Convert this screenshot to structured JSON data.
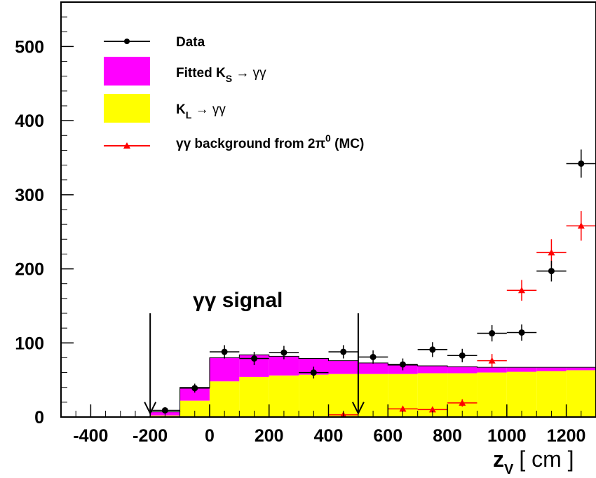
{
  "chart_data": {
    "type": "bar",
    "xlabel": "z_V [ cm ]",
    "xlabel_parts": {
      "main": "z",
      "sub": "V",
      "units": "[ cm ]"
    },
    "xlim": [
      -500,
      1300
    ],
    "ylim": [
      0,
      560
    ],
    "x_ticks": [
      -400,
      -200,
      0,
      200,
      400,
      600,
      800,
      1000,
      1200
    ],
    "y_ticks": [
      0,
      100,
      200,
      300,
      400,
      500
    ],
    "bin_edges": [
      -500,
      -400,
      -300,
      -200,
      -100,
      0,
      100,
      200,
      300,
      400,
      500,
      600,
      700,
      800,
      900,
      1000,
      1100,
      1200,
      1300
    ],
    "colors": {
      "ks": "#ff00ff",
      "kl": "#ffff00",
      "data": "#000000",
      "background": "#ff0000"
    },
    "series": [
      {
        "name": "K_L → γγ",
        "kind": "stacked-histogram",
        "color": "#ffff00",
        "values": [
          0,
          0,
          0,
          2,
          22,
          48,
          54,
          56,
          57,
          58,
          58,
          58,
          59,
          59,
          60,
          61,
          62,
          63
        ]
      },
      {
        "name": "Fitted K_S → γγ",
        "kind": "stacked-histogram",
        "color": "#ff00ff",
        "values": [
          0,
          0,
          0,
          5,
          18,
          32,
          30,
          26,
          22,
          18,
          15,
          12,
          10,
          9,
          7,
          6,
          5,
          4
        ]
      },
      {
        "name": "Data",
        "kind": "points-with-errors",
        "color": "#000000",
        "x": [
          -150,
          -50,
          50,
          150,
          250,
          350,
          450,
          550,
          650,
          750,
          850,
          950,
          1050,
          1150,
          1250
        ],
        "y": [
          9,
          39,
          88,
          79,
          87,
          60,
          88,
          81,
          71,
          91,
          83,
          113,
          114,
          197,
          342
        ],
        "yerr": [
          4,
          6,
          9,
          9,
          9,
          8,
          9,
          9,
          8,
          10,
          9,
          11,
          11,
          14,
          19
        ]
      },
      {
        "name": "γγ background from 2π⁰ (MC)",
        "kind": "points-with-errors",
        "color": "#ff0000",
        "x": [
          450,
          650,
          750,
          850,
          950,
          1050,
          1150,
          1250
        ],
        "y": [
          3,
          11,
          10,
          19,
          76,
          171,
          222,
          258
        ],
        "yerr": [
          0,
          0,
          2,
          5,
          9,
          14,
          18,
          20
        ]
      }
    ],
    "annotations": [
      {
        "text": "γγ signal"
      },
      {
        "kind": "arrow-down",
        "x": -200,
        "y_top": 140,
        "y_bottom": 5
      },
      {
        "kind": "arrow-down",
        "x": 500,
        "y_top": 140,
        "y_bottom": 5
      }
    ],
    "legend": {
      "placement": "top-left",
      "entries": [
        {
          "label": "Data"
        },
        {
          "label_main": "Fitted K",
          "label_sub": "S",
          "label_arrow": " → γγ"
        },
        {
          "label_main": "K",
          "label_sub": "L",
          "label_arrow": " → γγ"
        },
        {
          "label_main": "γγ background from 2π",
          "label_sup": "0",
          "label_end": " (MC)"
        }
      ]
    },
    "grid": false
  }
}
